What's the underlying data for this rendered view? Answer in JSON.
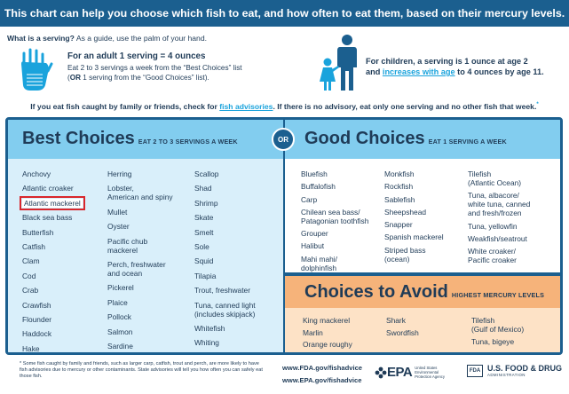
{
  "header": {
    "title": "This chart can help you choose which fish to eat, and how often to eat them, based on their mercury levels."
  },
  "serving": {
    "question": "What is a serving?",
    "guide": "As a guide, use the palm of your hand.",
    "adult_title": "For an adult 1 serving = 4 ounces",
    "adult_text_1": "Eat 2 to 3 servings a week from the “Best Choices” list",
    "adult_text_2a": "(",
    "adult_text_or": "OR",
    "adult_text_2b": " 1 serving from the “Good Choices” list).",
    "child_text_1": "For children, a serving is 1 ounce at age 2",
    "child_text_2a": "and ",
    "child_link": "increases with age",
    "child_text_2b": " to 4 ounces by age 11."
  },
  "advisory": {
    "text_1": "If you eat fish caught by family or friends, check for ",
    "link": "fish advisories",
    "text_2": ". If there is no advisory, eat only one serving and no other fish that week.",
    "mark": "*"
  },
  "best": {
    "title": "Best Choices",
    "subtitle": "EAT 2 TO 3 SERVINGS A WEEK",
    "col1": [
      "Anchovy",
      "Atlantic croaker",
      "Atlantic mackerel",
      "Black sea bass",
      "Butterfish",
      "Catfish",
      "Clam",
      "Cod",
      "Crab",
      "Crawfish",
      "Flounder",
      "Haddock",
      "Hake"
    ],
    "col2": [
      "Herring",
      "Lobster,\nAmerican and spiny",
      "Mullet",
      "Oyster",
      "Pacific chub\nmackerel",
      "Perch, freshwater\nand ocean",
      "Pickerel",
      "Plaice",
      "Pollock",
      "Salmon",
      "Sardine"
    ],
    "col3": [
      "Scallop",
      "Shad",
      "Shrimp",
      "Skate",
      "Smelt",
      "Sole",
      "Squid",
      "Tilapia",
      "Trout, freshwater",
      "Tuna, canned light\n(includes skipjack)",
      "Whitefish",
      "Whiting"
    ]
  },
  "or_label": "OR",
  "good": {
    "title": "Good Choices",
    "subtitle": "EAT 1 SERVING A WEEK",
    "col1": [
      "Bluefish",
      "Buffalofish",
      "Carp",
      "Chilean sea bass/\nPatagonian toothfish",
      "Grouper",
      "Halibut",
      "Mahi mahi/\ndolphinfish"
    ],
    "col2": [
      "Monkfish",
      "Rockfish",
      "Sablefish",
      "Sheepshead",
      "Snapper",
      "Spanish mackerel",
      "Striped bass\n(ocean)"
    ],
    "col3": [
      "Tilefish\n(Atlantic Ocean)",
      "Tuna, albacore/\nwhite tuna, canned\nand fresh/frozen",
      "Tuna, yellowfin",
      "Weakfish/seatrout",
      "White croaker/\nPacific croaker"
    ]
  },
  "avoid": {
    "title": "Choices to Avoid",
    "subtitle": "HIGHEST MERCURY LEVELS",
    "col1": [
      "King mackerel",
      "Marlin",
      "Orange roughy"
    ],
    "col2": [
      "Shark",
      "Swordfish"
    ],
    "col3": [
      "Tilefish\n(Gulf of Mexico)",
      "Tuna, bigeye"
    ]
  },
  "footer": {
    "footnote": "* Some fish caught by family and friends, such as larger carp, catfish, trout and perch, are more likely to have fish advisories due to mercury or other contaminants. State advisories will tell you how often you can safely eat those fish.",
    "url_fda": "www.FDA.gov/fishadvice",
    "url_epa": "www.EPA.gov/fishadvice",
    "epa_logo": "EPA",
    "epa_sub": "United States Environmental Protection Agency",
    "fda_box": "FDA",
    "fda_name": "U.S. FOOD & DRUG",
    "fda_admin": "ADMINISTRATION"
  },
  "highlight": "Atlantic mackerel",
  "colors": {
    "navy": "#1b5f8f",
    "light_blue": "#82cdef",
    "pale_blue": "#d9effa",
    "orange": "#f6b37a",
    "pale_orange": "#fde2c6",
    "link": "#1aa3dc",
    "highlight": "#d9262c"
  }
}
